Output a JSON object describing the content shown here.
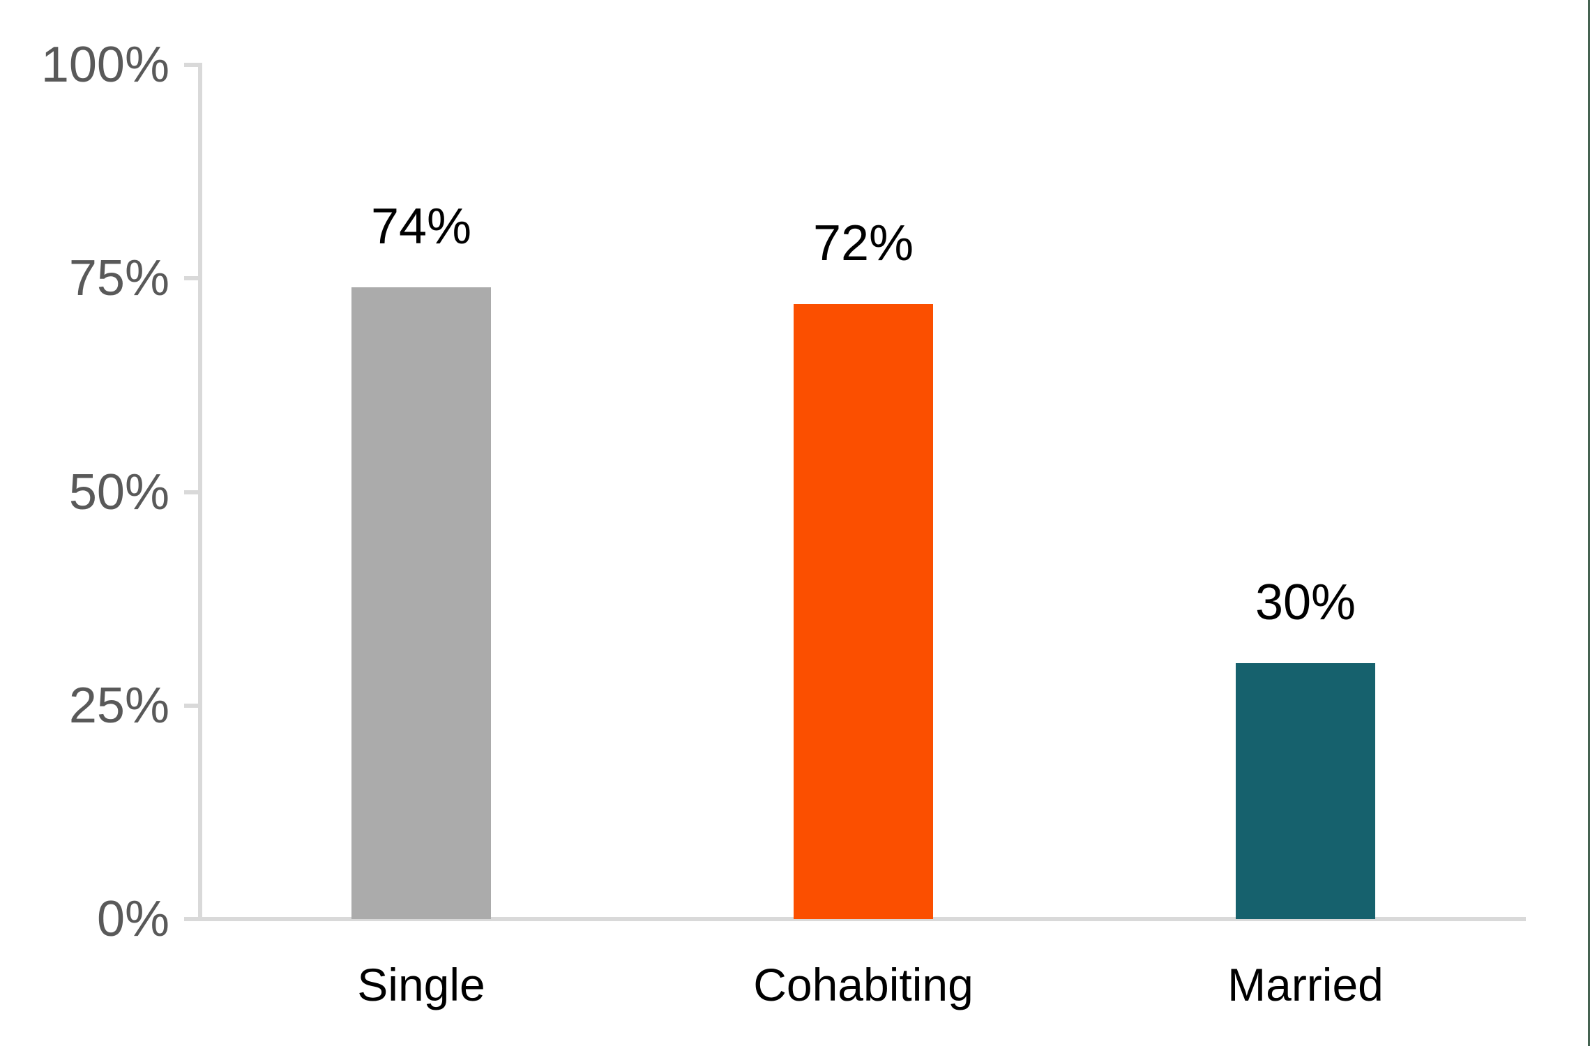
{
  "page": {
    "background_color": "#FFFFFF",
    "right_edge_line_color": "#456351"
  },
  "chart_data": {
    "type": "bar",
    "title": "",
    "xlabel": "",
    "ylabel": "",
    "categories": [
      "Single",
      "Cohabiting",
      "Married"
    ],
    "values": [
      74,
      72,
      30
    ],
    "value_labels": [
      "74%",
      "72%",
      "30%"
    ],
    "bar_colors": [
      "#ABABAB",
      "#FB4F00",
      "#16616D"
    ],
    "ylim": [
      0,
      100
    ],
    "y_ticks": [
      0,
      25,
      50,
      75,
      100
    ],
    "y_tick_labels": [
      "0%",
      "25%",
      "50%",
      "75%",
      "100%"
    ],
    "grid": false,
    "legend": false,
    "axis_color": "#D9D9D9",
    "tick_label_color": "#595959",
    "data_label_color": "#000000",
    "category_label_color": "#000000"
  }
}
